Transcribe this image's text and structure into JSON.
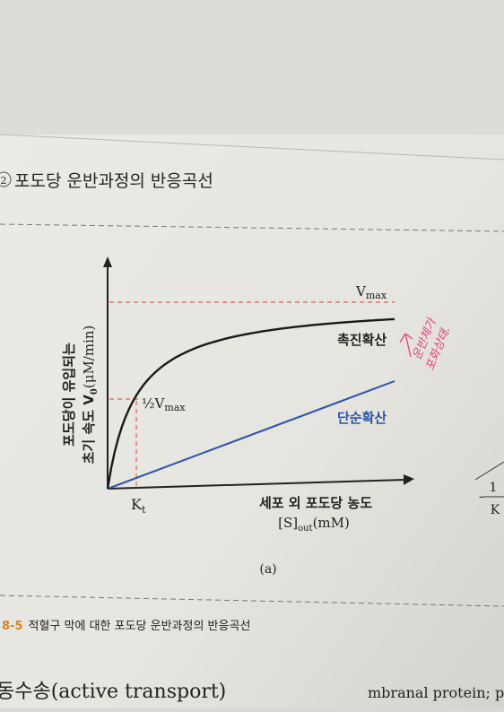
{
  "heading": {
    "number": "2",
    "title": "포도당 운반과정의 반응곡선"
  },
  "figure": {
    "y_axis_label": [
      "포도당이 유입되는",
      "초기 속도 V",
      "0",
      "(μM/min)"
    ],
    "x_axis_label": [
      "세포 외 포도당 농도",
      "[S]",
      "out",
      "(mM)"
    ],
    "vmax_label": {
      "main": "V",
      "sub": "max"
    },
    "half_vmax_label": {
      "fraction": "½",
      "main": "V",
      "sub": "max"
    },
    "kt_label": {
      "main": "K",
      "sub": "t"
    },
    "curves": {
      "facilitated": "촉진확산",
      "simple": "단순확산"
    },
    "panel": "(a)",
    "handwritten_note": [
      "운반체가",
      "포화상태."
    ]
  },
  "caption": {
    "number": "8-5",
    "text": "적혈구 막에 대한 포도당 운반과정의 반응곡선"
  },
  "section_heading": "동수송(active transport)",
  "right_fragment": {
    "text": "mbranal protein; p",
    "fraction_top": "1",
    "fraction_bottom": "K"
  }
}
